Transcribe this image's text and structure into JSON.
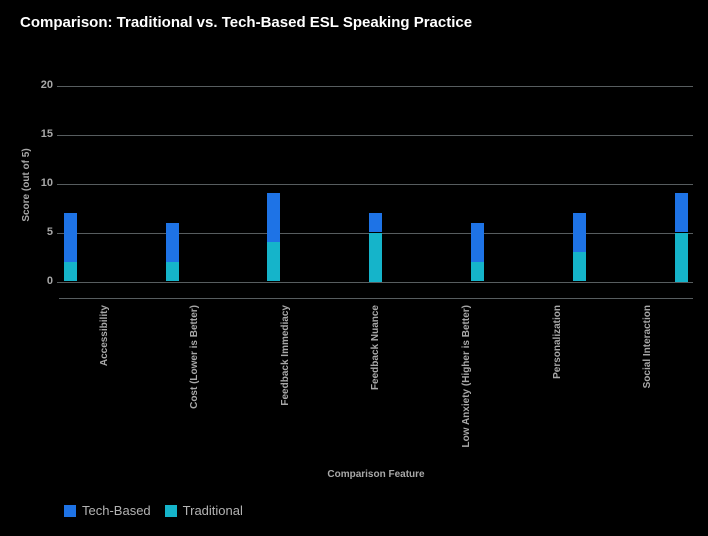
{
  "chart_data": {
    "type": "bar",
    "stacked": true,
    "title": "Comparison: Traditional vs. Tech-Based ESL Speaking Practice",
    "xlabel": "Comparison Feature",
    "ylabel": "Score (out of 5)",
    "ylim": [
      0,
      20
    ],
    "yticks": [
      0,
      5,
      10,
      15,
      20
    ],
    "grid": true,
    "legend_position": "bottom-left",
    "background_color": "#000000",
    "categories": [
      "Accessibility",
      "Cost (Lower is Better)",
      "Feedback Immediacy",
      "Feedback Nuance",
      "Low Anxiety (Higher is Better)",
      "Personalization",
      "Social Interaction"
    ],
    "series": [
      {
        "name": "Tech-Based",
        "color": "#1e73e6",
        "values": [
          5,
          4,
          5,
          2,
          4,
          4,
          4
        ]
      },
      {
        "name": "Traditional",
        "color": "#15b4ca",
        "values": [
          2,
          2,
          4,
          5,
          2,
          3,
          5
        ]
      }
    ],
    "stack_order_bottom_to_top": [
      "Traditional",
      "Tech-Based"
    ],
    "stacked_totals": [
      7,
      6,
      9,
      7,
      6,
      7,
      9
    ]
  }
}
